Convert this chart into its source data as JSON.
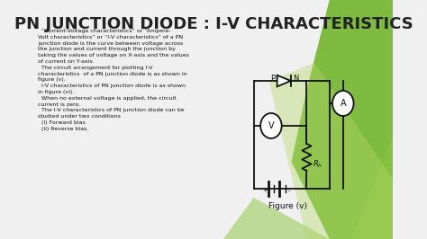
{
  "title": "PN JUNCTION DIODE : I-V CHARACTERISTICS",
  "title_fontsize": 13,
  "title_color": "#222222",
  "bg_color": "#f0f0f0",
  "green_color": "#5a9e20",
  "text_block": [
    "  “Current-Voltage characteristics” or “Ampere-",
    "Volt characteristics” or “I-V characteristics” of a PN",
    "junction diode is the curve between voltage across",
    "the junction and current through the junction by",
    "taking the values of voltage on X-axis and the values",
    "of current on Y-axis.",
    "  The circuit arrangement for plotting I-V",
    "characteristics  of a PN junction diode is as shown in",
    "figure (v).",
    "  I-V characteristics of PN junction diode is as shown",
    "in figure (vi).",
    "  When no external voltage is applied, the circuit",
    "current is zero.",
    "  The I-V characteristics of PN junction diode can be",
    "studied under two conditions",
    "  (i) Forward bias",
    "  (ii) Reverse bias."
  ],
  "figure_label": "Figure (v)"
}
